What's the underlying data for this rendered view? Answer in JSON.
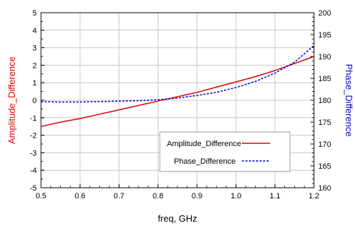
{
  "chart_data": {
    "type": "line",
    "xlabel": "freq, GHz",
    "ylabel_left": "Amplitude_Difference",
    "ylabel_right": "Phase_Difference",
    "xlim": [
      0.5,
      1.2
    ],
    "ylim_left": [
      -5,
      5
    ],
    "ylim_right": [
      160,
      200
    ],
    "x_ticks": [
      "0.5",
      "0.6",
      "0.7",
      "0.8",
      "0.9",
      "1.0",
      "1.1",
      "1.2"
    ],
    "y_left_ticks": [
      "5",
      "4",
      "3",
      "2",
      "1",
      "0",
      "-1",
      "-2",
      "-3",
      "-4",
      "-5"
    ],
    "y_right_ticks": [
      "200",
      "195",
      "190",
      "185",
      "180",
      "175",
      "170",
      "165",
      "160"
    ],
    "grid": true,
    "legend_position": "bottom-right",
    "series": [
      {
        "name": "Amplitude_Difference",
        "axis": "left",
        "color": "#e00000",
        "style": "solid",
        "x": [
          0.5,
          0.55,
          0.6,
          0.65,
          0.7,
          0.75,
          0.8,
          0.85,
          0.9,
          0.95,
          1.0,
          1.05,
          1.1,
          1.15,
          1.2
        ],
        "y": [
          -1.5,
          -1.25,
          -1.05,
          -0.8,
          -0.55,
          -0.3,
          -0.05,
          0.2,
          0.45,
          0.75,
          1.05,
          1.35,
          1.7,
          2.1,
          2.5
        ]
      },
      {
        "name": "Phase_Difference",
        "axis": "right",
        "color": "#0000cc",
        "style": "dashed",
        "x": [
          0.5,
          0.55,
          0.6,
          0.65,
          0.7,
          0.75,
          0.8,
          0.85,
          0.9,
          0.95,
          1.0,
          1.05,
          1.1,
          1.15,
          1.2
        ],
        "y": [
          179.7,
          179.6,
          179.6,
          179.7,
          179.8,
          179.9,
          180.1,
          180.5,
          181.1,
          181.8,
          182.9,
          184.3,
          186.2,
          188.7,
          192.5
        ]
      }
    ]
  }
}
